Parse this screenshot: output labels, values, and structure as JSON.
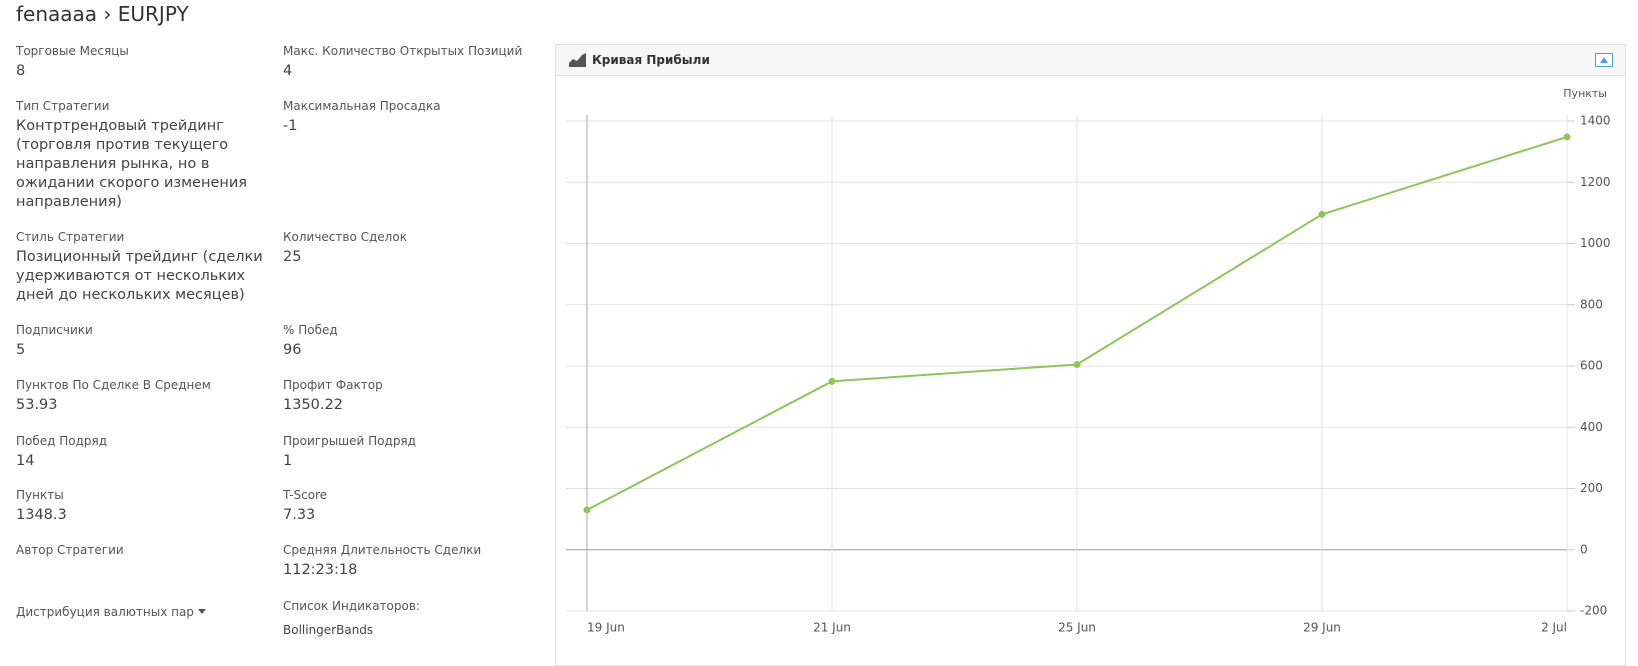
{
  "header": {
    "user": "fenaaaa",
    "symbol": "› EURJPY"
  },
  "stats": {
    "left": [
      {
        "label": "Торговые Месяцы",
        "value": "8"
      },
      {
        "label": "Тип Стратегии",
        "value": "Контртрендовый трейдинг (торговля против текущего направления рынка, но в ожидании скорого изменения направления)"
      },
      {
        "label": "Стиль Стратегии",
        "value": "Позиционный трейдинг (сделки удерживаются от нескольких дней до нескольких месяцев)"
      },
      {
        "label": "Подписчики",
        "value": "5"
      },
      {
        "label": "Пунктов По Сделке В Среднем",
        "value": "53.93"
      },
      {
        "label": "Побед Подряд",
        "value": "14"
      },
      {
        "label": "Пункты",
        "value": "1348.3"
      },
      {
        "label": "Автор Стратегии"
      },
      {
        "label": "Дистрибуция валютных пар"
      }
    ],
    "right": [
      {
        "label": "Макс. Количество Открытых Позиций",
        "value": "4"
      },
      {
        "label": "Максимальная Просадка",
        "value": "-1"
      },
      {
        "label": "Количество Сделок",
        "value": "25"
      },
      {
        "label": "% Побед",
        "value": "96"
      },
      {
        "label": "Профит Фактор",
        "value": "1350.22"
      },
      {
        "label": "Проигрышей Подряд",
        "value": "1"
      },
      {
        "label": "T-Score",
        "value": "7.33"
      },
      {
        "label": "Средняя Длительность Сделки",
        "value": "112:23:18"
      },
      {
        "label": "Список Индикаторов:",
        "value": "BollingerBands"
      }
    ]
  },
  "chart_data": {
    "type": "line",
    "title": "Кривая Прибыли",
    "y_label": "Пункты",
    "categories": [
      "19 Jun",
      "21 Jun",
      "25 Jun",
      "29 Jun",
      "2 Jul"
    ],
    "values": [
      130,
      550,
      605,
      1095,
      1348
    ],
    "color": "#8dc65a",
    "ylim": [
      -200,
      1400
    ],
    "yticks": [
      -200,
      0,
      200,
      400,
      600,
      800,
      1000,
      1200,
      1400
    ],
    "grid": true
  }
}
